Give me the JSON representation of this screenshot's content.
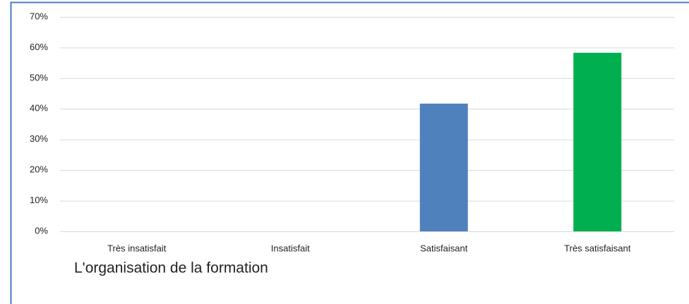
{
  "chart_data": {
    "type": "bar",
    "title": "L'organisation de la formation",
    "categories": [
      "Très insatisfait",
      "Insatisfait",
      "Satisfaisant",
      "Très satisfaisant"
    ],
    "values": [
      0,
      0,
      41.7,
      58.3
    ],
    "colors": [
      "#4f81bd",
      "#4f81bd",
      "#4f81bd",
      "#00b050"
    ],
    "ylim": [
      0,
      70
    ],
    "yticks": [
      {
        "value": 0,
        "label": "0%"
      },
      {
        "value": 10,
        "label": "10%"
      },
      {
        "value": 20,
        "label": "20%"
      },
      {
        "value": 30,
        "label": "30%"
      },
      {
        "value": 40,
        "label": "40%"
      },
      {
        "value": 50,
        "label": "50%"
      },
      {
        "value": 60,
        "label": "60%"
      },
      {
        "value": 70,
        "label": "70%"
      }
    ],
    "grid": true
  }
}
